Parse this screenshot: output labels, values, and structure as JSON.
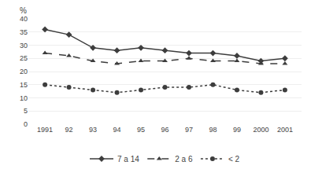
{
  "chart_data": {
    "type": "line",
    "y_label": "%",
    "categories": [
      "1991",
      "92",
      "93",
      "94",
      "95",
      "96",
      "97",
      "98",
      "99",
      "2000",
      "2001"
    ],
    "series": [
      {
        "name": "7 a 14",
        "color": "#3d3d3d",
        "marker": "diamond",
        "line_style": "solid",
        "values": [
          36,
          34,
          29,
          28,
          29,
          28,
          27,
          27,
          26,
          24,
          25
        ]
      },
      {
        "name": "2 a 6",
        "color": "#3d3d3d",
        "marker": "triangle-up",
        "line_style": "dashed",
        "values": [
          27,
          26,
          24,
          23,
          24,
          24,
          25,
          24,
          24,
          23,
          23
        ]
      },
      {
        "name": "< 2",
        "color": "#3d3d3d",
        "marker": "circle",
        "line_style": "dotted",
        "values": [
          15,
          14,
          13,
          12,
          13,
          14,
          14,
          15,
          13,
          12,
          13
        ]
      }
    ],
    "ylim": [
      0,
      40
    ],
    "yticks": [
      0,
      5,
      10,
      15,
      20,
      25,
      30,
      35,
      40
    ],
    "grid": true,
    "legend": "bottom"
  }
}
